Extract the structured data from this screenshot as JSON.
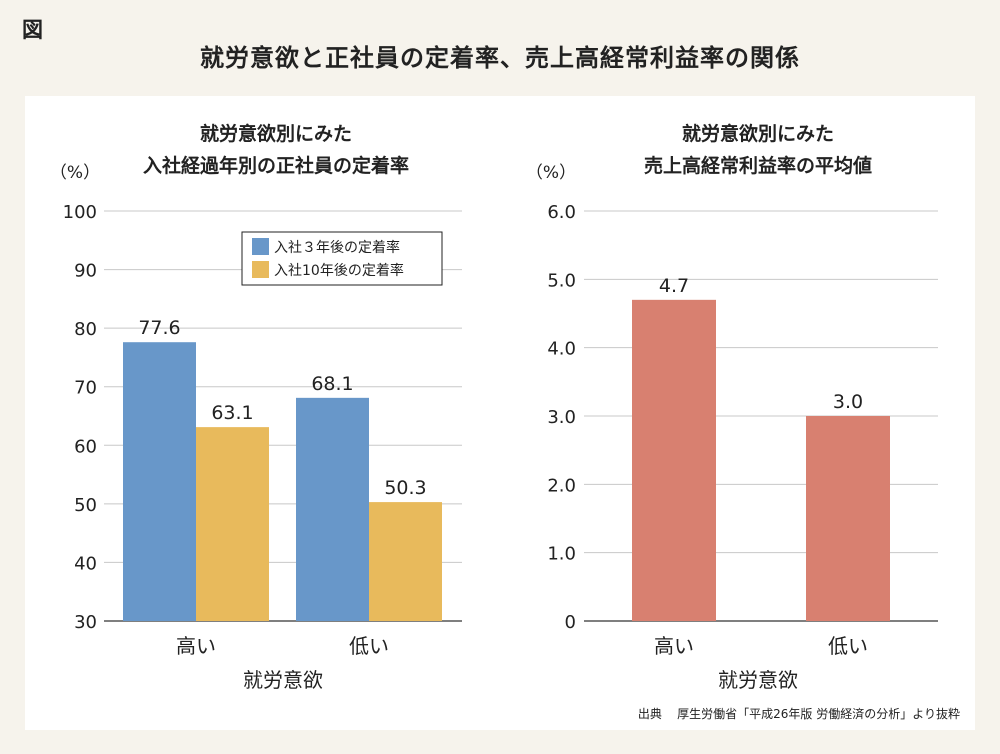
{
  "figure_label": "図",
  "main_title": "就労意欲と正社員の定着率、売上高経常利益率の関係",
  "source": {
    "prefix": "出典",
    "text": "厚生労働省「平成26年版 労働経済の分析」より抜粋"
  },
  "chart_data": [
    {
      "type": "bar",
      "title_lines": [
        "就労意欲別にみた",
        "入社経過年別の正社員の定着率"
      ],
      "unit_label": "（%）",
      "xlabel": "就労意欲",
      "categories": [
        "高い",
        "低い"
      ],
      "ylim": [
        30,
        100
      ],
      "yticks": [
        "30",
        "40",
        "50",
        "60",
        "70",
        "80",
        "90",
        "100"
      ],
      "ytick_values": [
        30,
        40,
        50,
        60,
        70,
        80,
        90,
        100
      ],
      "grid": true,
      "legend_position": "top-right",
      "series": [
        {
          "name": "入社３年後の定着率",
          "values": [
            77.6,
            68.1
          ],
          "labels": [
            "77.6",
            "68.1"
          ],
          "color": "#6897c9"
        },
        {
          "name": "入社10年後の定着率",
          "values": [
            63.1,
            50.3
          ],
          "labels": [
            "63.1",
            "50.3"
          ],
          "color": "#e8ba5c"
        }
      ]
    },
    {
      "type": "bar",
      "title_lines": [
        "就労意欲別にみた",
        "売上高経常利益率の平均値"
      ],
      "unit_label": "（%）",
      "xlabel": "就労意欲",
      "categories": [
        "高い",
        "低い"
      ],
      "ylim": [
        0,
        6
      ],
      "yticks": [
        "0",
        "1.0",
        "2.0",
        "3.0",
        "4.0",
        "5.0",
        "6.0"
      ],
      "ytick_values": [
        0,
        1,
        2,
        3,
        4,
        5,
        6
      ],
      "grid": true,
      "series": [
        {
          "values": [
            4.7,
            3.0
          ],
          "labels": [
            "4.7",
            "3.0"
          ],
          "color": "#d88070"
        }
      ]
    }
  ]
}
